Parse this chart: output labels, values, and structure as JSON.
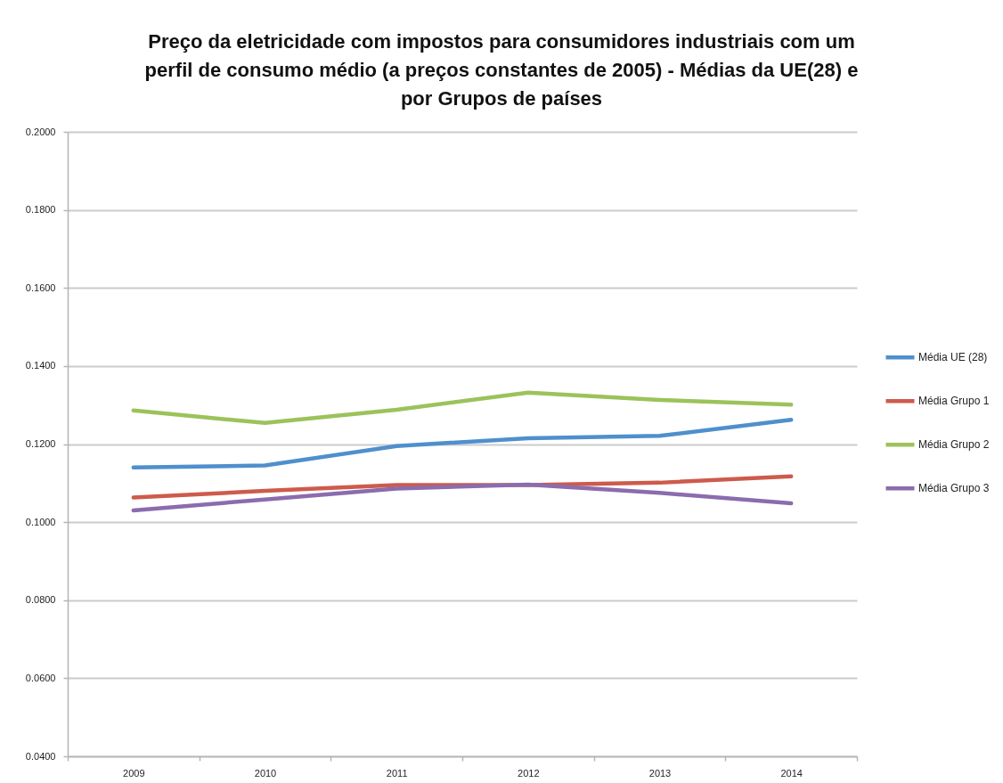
{
  "chart_data": {
    "type": "line",
    "title": "Preço da eletricidade com impostos para consumidores industriais com um perfil de consumo médio (a preços constantes de 2005) - Médias da UE(28) e por Grupos de países",
    "categories": [
      "2009",
      "2010",
      "2011",
      "2012",
      "2013",
      "2014"
    ],
    "series": [
      {
        "name": "Média UE (28)",
        "color": "#4f8fcd",
        "values": [
          0.114,
          0.1145,
          0.1195,
          0.1215,
          0.1221,
          0.1262
        ]
      },
      {
        "name": "Média Grupo 1",
        "color": "#cd5b4c",
        "values": [
          0.1063,
          0.108,
          0.1095,
          0.1095,
          0.1101,
          0.1117
        ]
      },
      {
        "name": "Média Grupo 2",
        "color": "#9cc25b",
        "values": [
          0.1286,
          0.1254,
          0.1288,
          0.1332,
          0.1313,
          0.1301
        ]
      },
      {
        "name": "Média Grupo 3",
        "color": "#8b6cae",
        "values": [
          0.103,
          0.1058,
          0.1086,
          0.1096,
          0.1075,
          0.1048
        ]
      }
    ],
    "ylim": [
      0.04,
      0.2
    ],
    "yticks": [
      {
        "value": 0.04,
        "label": "0.0400"
      },
      {
        "value": 0.06,
        "label": "0.0600"
      },
      {
        "value": 0.08,
        "label": "0.0800"
      },
      {
        "value": 0.1,
        "label": "0.1000"
      },
      {
        "value": 0.12,
        "label": "0.1200"
      },
      {
        "value": 0.14,
        "label": "0.1400"
      },
      {
        "value": 0.16,
        "label": "0.1600"
      },
      {
        "value": 0.18,
        "label": "0.1800"
      },
      {
        "value": 0.2,
        "label": "0.2000"
      }
    ],
    "grid": "y",
    "legend": "right"
  }
}
